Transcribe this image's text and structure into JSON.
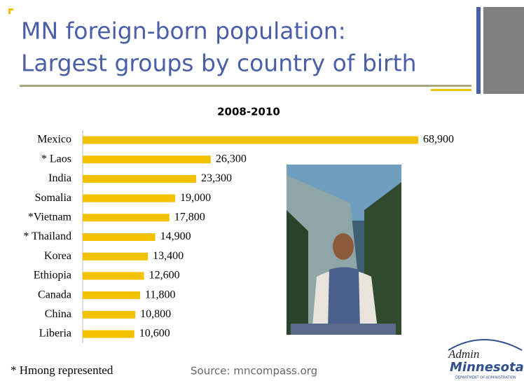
{
  "chart_data": {
    "type": "bar",
    "orientation": "horizontal",
    "title": "MN foreign-born population: Largest groups by country of birth",
    "title_lines": [
      "MN foreign-born population:",
      "Largest groups by country of birth"
    ],
    "subtitle": "2008-2010",
    "categories": [
      "Mexico",
      "* Laos",
      "India",
      "Somalia",
      "*Vietnam",
      "* Thailand",
      "Korea",
      "Ethiopia",
      "Canada",
      "China",
      "Liberia"
    ],
    "values": [
      68900,
      26300,
      23300,
      19000,
      17800,
      14900,
      13400,
      12600,
      11800,
      10800,
      10600
    ],
    "value_labels": [
      "68,900",
      "26,300",
      "23,300",
      "19,000",
      "17,800",
      "14,900",
      "13,400",
      "12,600",
      "11,800",
      "10,800",
      "10,600"
    ],
    "color": "#f2c200",
    "footnote": "* Hmong represented",
    "source": "Source: mncompass.org",
    "logo": {
      "line1": "Admin",
      "line2": "Minnesota",
      "line3": "DEPARTMENT OF ADMINISTRATION"
    }
  }
}
